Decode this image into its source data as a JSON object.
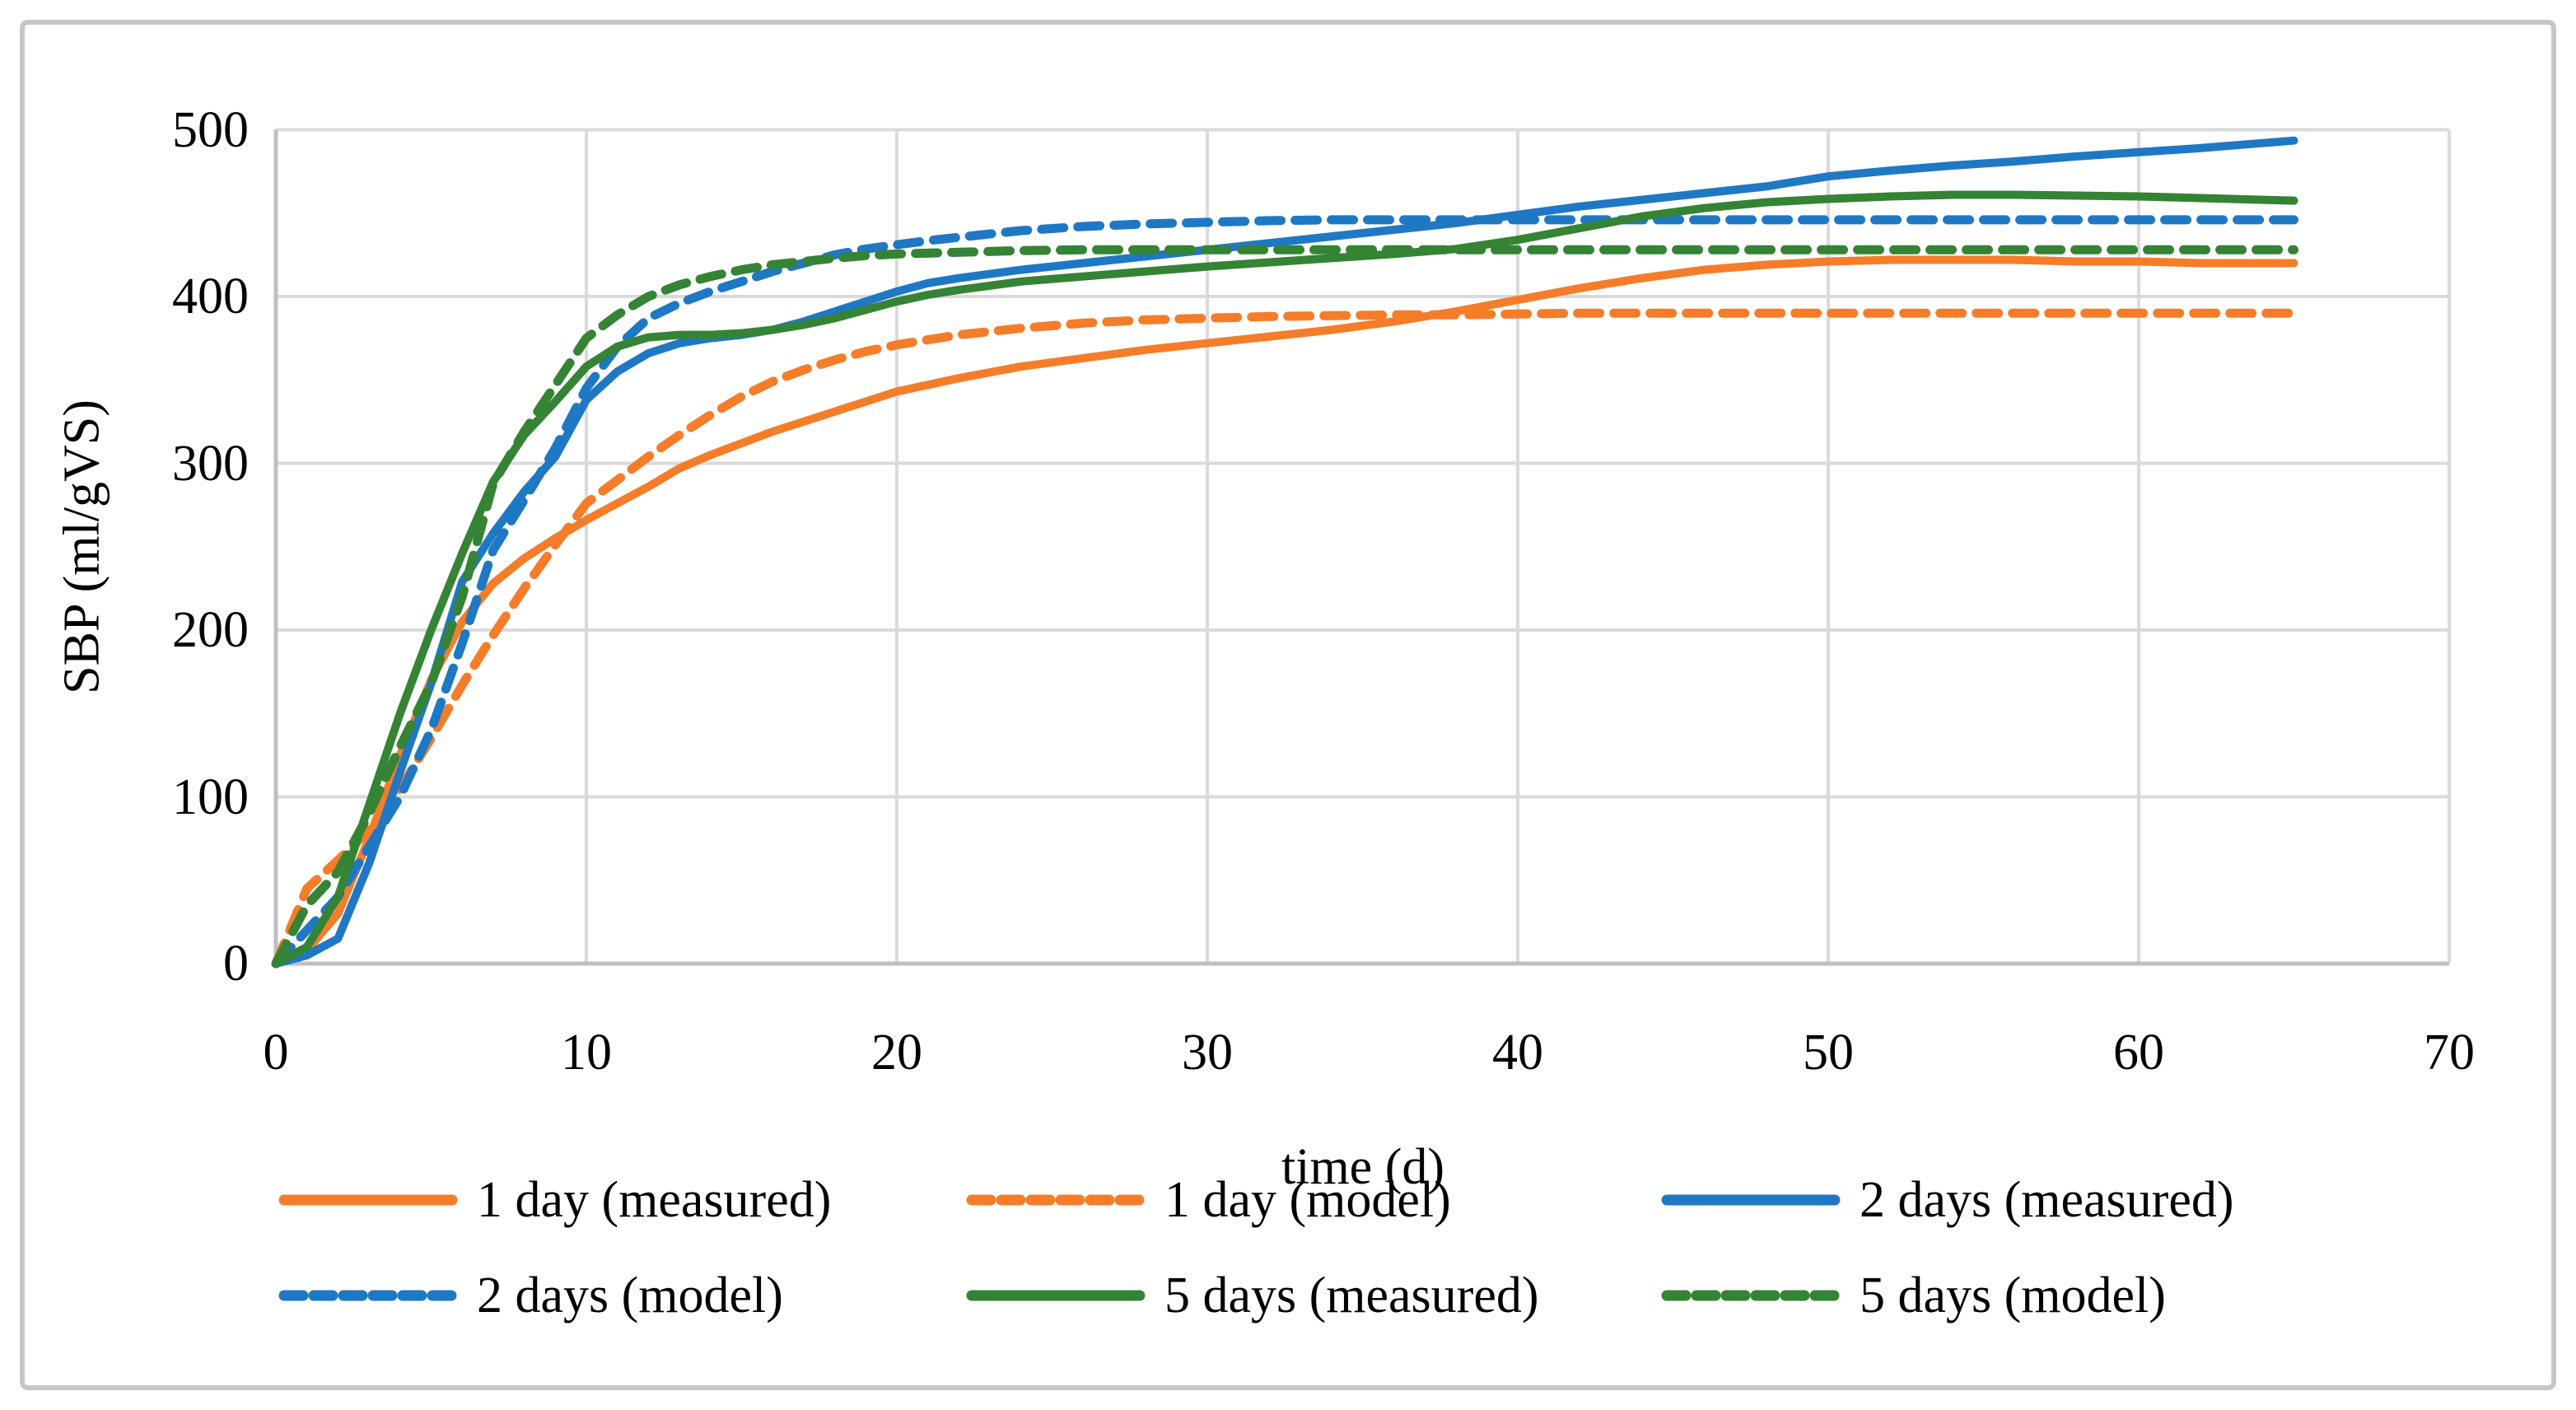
{
  "figure": {
    "background_color": "#FFFFFF",
    "border_color": "#C6C6C6",
    "text_color": "#000000",
    "gridline_color": "#DADADA",
    "axis_line_color": "#BFBFBF"
  },
  "chart_data": {
    "type": "line",
    "title": "",
    "xlabel": "time (d)",
    "ylabel": "SBP (ml/gVS)",
    "xlim": [
      0,
      70
    ],
    "ylim": [
      0,
      500
    ],
    "xticks": [
      0,
      10,
      20,
      30,
      40,
      50,
      60,
      70
    ],
    "yticks": [
      0,
      100,
      200,
      300,
      400,
      500
    ],
    "grid": true,
    "legend_position": "bottom",
    "legend_columns": 3,
    "x": [
      0,
      1,
      2,
      3,
      4,
      5,
      6,
      7,
      8,
      9,
      10,
      11,
      12,
      13,
      14,
      15,
      16,
      17,
      18,
      19,
      20,
      21,
      22,
      24,
      26,
      28,
      30,
      32,
      34,
      36,
      38,
      40,
      42,
      44,
      46,
      48,
      50,
      52,
      54,
      56,
      58,
      60,
      62,
      64,
      65
    ],
    "series": [
      {
        "name": "1 day (measured)",
        "color": "#F57D2A",
        "style": "solid",
        "values": [
          0,
          8,
          30,
          75,
          125,
          170,
          205,
          228,
          243,
          255,
          266,
          276,
          286,
          297,
          305,
          312,
          319,
          325,
          331,
          337,
          343,
          347,
          351,
          358,
          363,
          368,
          372,
          376,
          380,
          385,
          391,
          398,
          405,
          411,
          416,
          419,
          421,
          422,
          422,
          422,
          421,
          421,
          420,
          420,
          420
        ]
      },
      {
        "name": "1 day (model)",
        "color": "#F57D2A",
        "style": "dashed",
        "values": [
          0,
          45,
          62,
          80,
          105,
          135,
          167,
          197,
          225,
          251,
          276,
          290,
          304,
          317,
          329,
          340,
          349,
          356,
          362,
          367,
          371,
          374,
          377,
          381,
          384,
          386,
          387,
          388,
          388.5,
          389,
          389,
          389.5,
          390,
          390,
          390,
          390,
          390,
          390,
          390,
          390,
          390,
          390,
          390,
          390,
          390
        ]
      },
      {
        "name": "2 days (measured)",
        "color": "#1F78C4",
        "style": "solid",
        "values": [
          0,
          5,
          15,
          60,
          115,
          168,
          229,
          258,
          283,
          304,
          338,
          355,
          366,
          372,
          375,
          377,
          380,
          385,
          391,
          397,
          403,
          408,
          411,
          416,
          420,
          424,
          428,
          432,
          436,
          440,
          444,
          449,
          454,
          458,
          462,
          466,
          472,
          475.5,
          478.5,
          481,
          484,
          486.5,
          489,
          492,
          493.5
        ]
      },
      {
        "name": "2 days (model)",
        "color": "#1F78C4",
        "style": "dashed",
        "values": [
          0,
          20,
          40,
          70,
          100,
          140,
          192,
          248,
          278,
          309,
          345,
          370,
          387,
          396,
          403,
          409,
          415,
          420,
          425,
          428.5,
          431,
          433.5,
          435.5,
          439.5,
          442,
          443.5,
          444.5,
          445.5,
          446,
          446,
          446,
          446,
          446,
          446,
          446,
          446,
          446,
          446,
          446,
          446,
          446,
          446,
          446,
          446,
          446
        ]
      },
      {
        "name": "5 days (measured)",
        "color": "#358334",
        "style": "solid",
        "values": [
          0,
          10,
          40,
          95,
          150,
          200,
          246,
          289,
          317,
          337,
          358,
          370,
          375.5,
          377,
          377,
          378,
          380,
          383,
          387,
          392,
          397,
          401,
          404,
          409,
          412,
          415,
          418,
          420.5,
          423,
          425.5,
          428.5,
          434,
          441,
          448,
          453,
          456.5,
          458.5,
          460,
          461,
          461,
          460.5,
          460,
          459,
          458,
          457.5
        ]
      },
      {
        "name": "5 days (model)",
        "color": "#358334",
        "style": "dashed",
        "values": [
          0,
          35,
          55,
          90,
          130,
          168,
          220,
          288,
          319,
          347,
          375,
          389,
          400,
          407,
          412,
          416,
          419,
          421,
          423,
          424.5,
          425.5,
          426,
          426.5,
          427.5,
          428,
          428,
          428,
          428,
          428,
          428,
          428,
          428,
          428,
          428,
          428,
          428,
          428,
          428,
          428,
          428,
          428,
          428,
          428,
          428,
          428
        ]
      }
    ]
  }
}
